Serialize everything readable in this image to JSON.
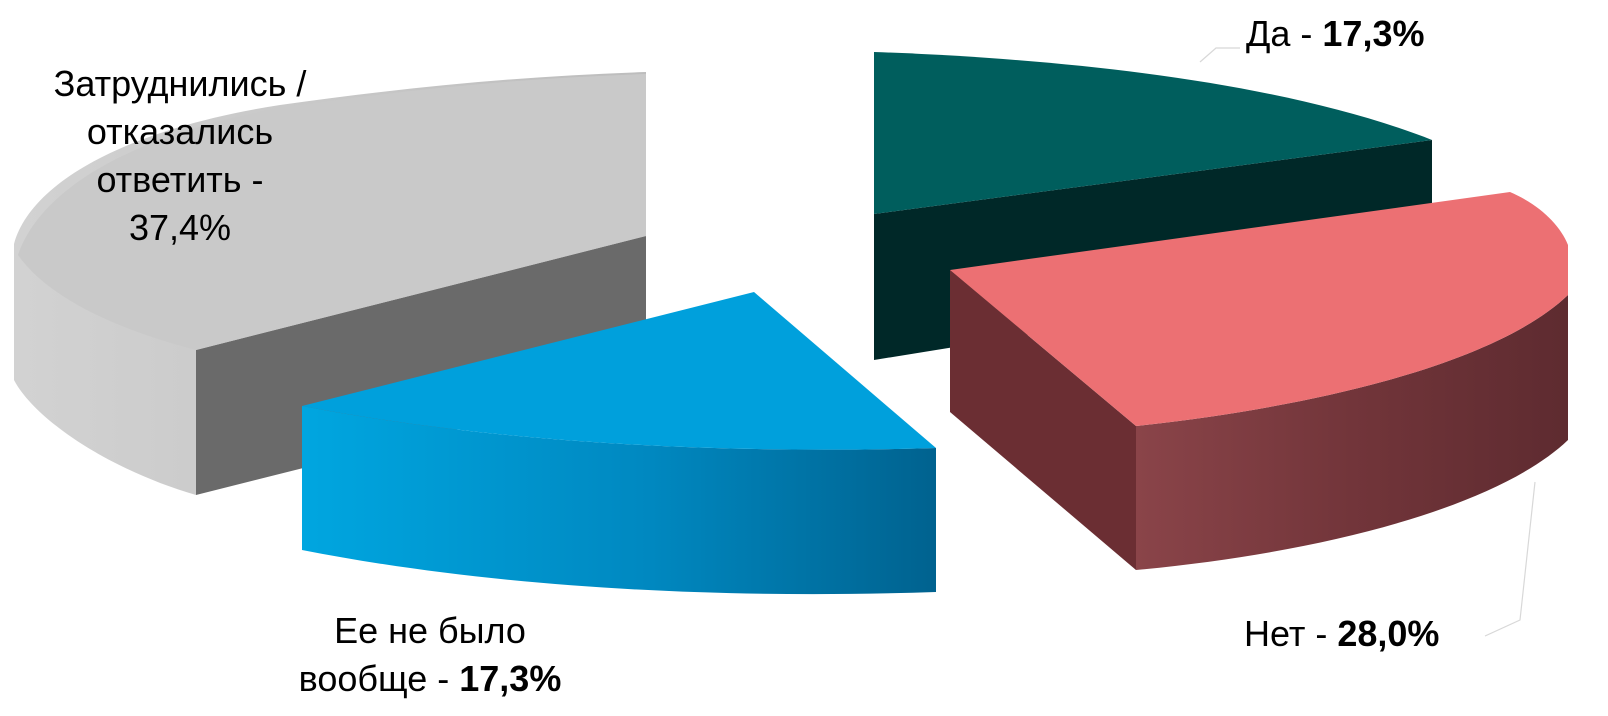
{
  "chart_data": {
    "type": "pie",
    "style": "3d-exploded",
    "slices": [
      {
        "label": "Да",
        "value": 17.3,
        "value_text": "17,3%",
        "color": "#005e5d",
        "side_color": "#002828"
      },
      {
        "label": "Нет",
        "value": 28.0,
        "value_text": "28,0%",
        "color": "#ec7073",
        "side_color": "#6b2e33"
      },
      {
        "label": "Ее не было вообще",
        "value": 17.3,
        "value_text": "17,3%",
        "color": "#00a0dc",
        "side_color": "#0068a0"
      },
      {
        "label": "Затруднились / отказались ответить",
        "value": 37.4,
        "value_text": "37,4%",
        "color": "#c9c9c9",
        "side_color": "#6a6a6a"
      }
    ],
    "labels": {
      "yes": {
        "name": "Да",
        "sep": " - ",
        "value": "17,3%"
      },
      "no": {
        "name": "Нет",
        "sep": " - ",
        "value": "28,0%"
      },
      "none_line1": "Ее не было",
      "none_line2": "вообще",
      "none_sep": " - ",
      "none_value": "17,3%",
      "hard_line1": "Затруднились /",
      "hard_line2": "отказались",
      "hard_line3": "ответить -",
      "hard_line4": "37,4%"
    },
    "legend": "none",
    "grid": false
  }
}
